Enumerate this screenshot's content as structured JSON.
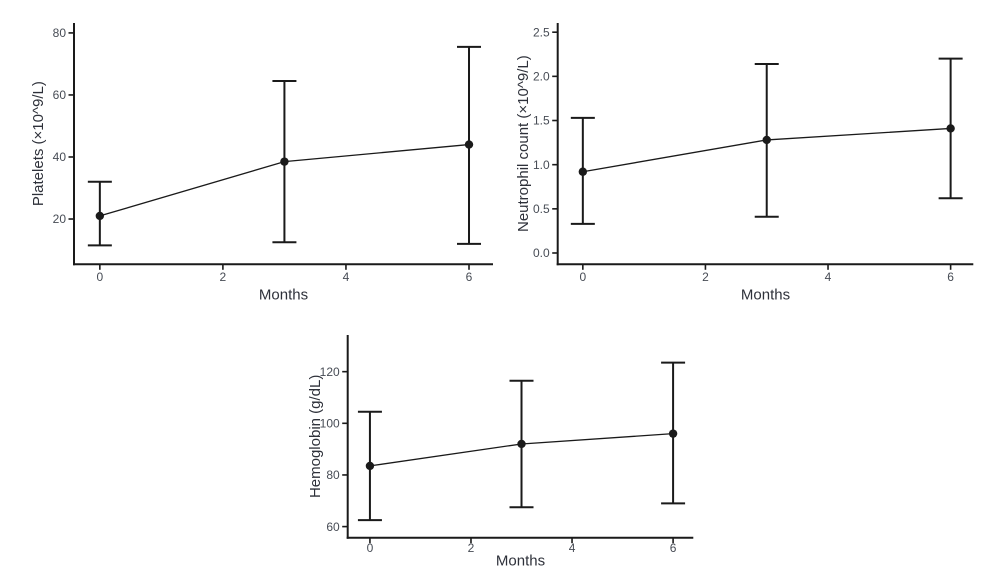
{
  "figure": {
    "background": "#ffffff",
    "axis_line_color": "#1a1a1a",
    "series_color": "#1a1a1a",
    "tick_label_color": "#474c55",
    "axis_title_color": "#2e313a",
    "description": "Three error-bar line charts of blood counts over months"
  },
  "chart_data": [
    {
      "id": "platelets",
      "type": "line",
      "title": "",
      "xlabel": "Months",
      "ylabel": "Platelets (×10^9/L)",
      "x": [
        0,
        3,
        6
      ],
      "series": [
        {
          "name": "mean",
          "values": [
            21,
            38.5,
            44
          ]
        }
      ],
      "error_low": [
        11.5,
        12.5,
        12
      ],
      "error_high": [
        32,
        64.5,
        75.5
      ],
      "x_ticks": [
        {
          "v": 0,
          "label": "0"
        },
        {
          "v": 2,
          "label": "2"
        },
        {
          "v": 4,
          "label": "4"
        },
        {
          "v": 6,
          "label": "6"
        }
      ],
      "y_ticks": [
        {
          "v": 20,
          "label": "20"
        },
        {
          "v": 40,
          "label": "40"
        },
        {
          "v": 60,
          "label": "60"
        },
        {
          "v": 80,
          "label": "80"
        }
      ],
      "xlim": [
        -0.42,
        6.39
      ],
      "ylim": [
        5.4,
        83.2
      ],
      "grid": false,
      "legend": "none"
    },
    {
      "id": "neutrophil-count",
      "type": "line",
      "title": "",
      "xlabel": "Months",
      "ylabel": "Neutrophil count (×10^9/L)",
      "x": [
        0,
        3,
        6
      ],
      "series": [
        {
          "name": "mean",
          "values": [
            0.92,
            1.28,
            1.41
          ]
        }
      ],
      "error_low": [
        0.33,
        0.41,
        0.62
      ],
      "error_high": [
        1.53,
        2.14,
        2.2
      ],
      "x_ticks": [
        {
          "v": 0,
          "label": "0"
        },
        {
          "v": 2,
          "label": "2"
        },
        {
          "v": 4,
          "label": "4"
        },
        {
          "v": 6,
          "label": "6"
        }
      ],
      "y_ticks": [
        {
          "v": 0,
          "label": "0.0"
        },
        {
          "v": 0.5,
          "label": "0.5"
        },
        {
          "v": 1,
          "label": "1.0"
        },
        {
          "v": 1.5,
          "label": "1.5"
        },
        {
          "v": 2,
          "label": "2.0"
        },
        {
          "v": 2.5,
          "label": "2.5"
        }
      ],
      "xlim": [
        -0.41,
        6.37
      ],
      "ylim": [
        -0.128,
        2.604
      ],
      "grid": false,
      "legend": "none"
    },
    {
      "id": "hemoglobin",
      "type": "line",
      "title": "",
      "xlabel": "Months",
      "ylabel": "Hemoglobin (g/dL)",
      "x": [
        0,
        3,
        6
      ],
      "series": [
        {
          "name": "mean",
          "values": [
            83.5,
            92,
            96
          ]
        }
      ],
      "error_low": [
        62.5,
        67.5,
        69
      ],
      "error_high": [
        104.5,
        116.5,
        123.5
      ],
      "x_ticks": [
        {
          "v": 0,
          "label": "0"
        },
        {
          "v": 2,
          "label": "2"
        },
        {
          "v": 4,
          "label": "4"
        },
        {
          "v": 6,
          "label": "6"
        }
      ],
      "y_ticks": [
        {
          "v": 60,
          "label": "60"
        },
        {
          "v": 80,
          "label": "80"
        },
        {
          "v": 100,
          "label": "100"
        },
        {
          "v": 120,
          "label": "120"
        }
      ],
      "xlim": [
        -0.44,
        6.4
      ],
      "ylim": [
        55.7,
        134.2
      ],
      "grid": false,
      "legend": "none"
    }
  ]
}
